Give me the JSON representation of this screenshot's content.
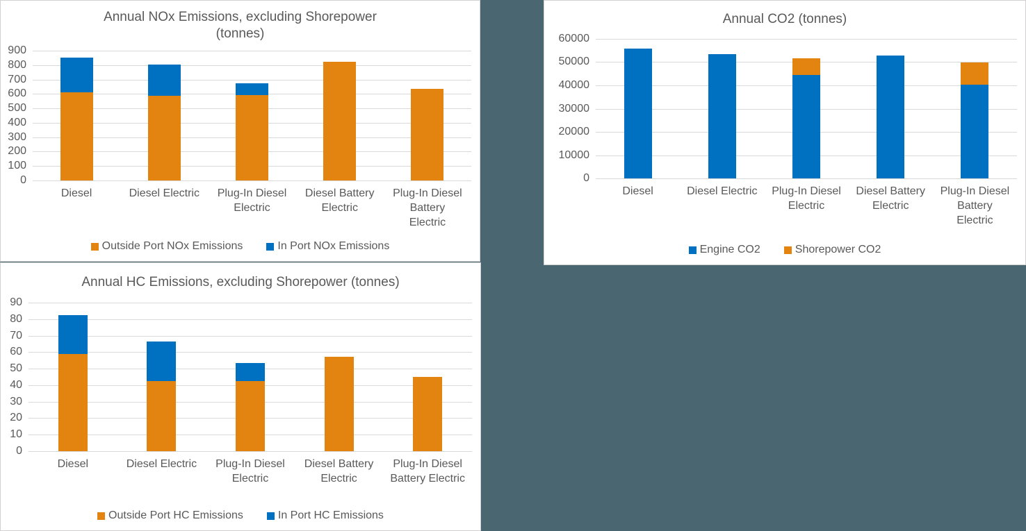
{
  "background_color": "#4A6771",
  "text_color": "#595959",
  "gridline_color": "#D9D9D9",
  "panel_border_color": "#D2D0D0",
  "series_colors": {
    "orange": "#E48410",
    "blue": "#0070C0"
  },
  "chart_data": [
    {
      "id": "nox",
      "type": "bar",
      "stacked": true,
      "title": "Annual NOx Emissions, excluding Shorepower (tonnes)",
      "title_lines": [
        "Annual NOx Emissions, excluding Shorepower",
        "(tonnes)"
      ],
      "categories": [
        [
          "Diesel"
        ],
        [
          "Diesel Electric"
        ],
        [
          "Plug-In Diesel",
          "Electric"
        ],
        [
          "Diesel Battery",
          "Electric"
        ],
        [
          "Plug-In Diesel",
          "Battery",
          "Electric"
        ]
      ],
      "series": [
        {
          "name": "Outside Port NOx Emissions",
          "color": "#E48410",
          "values": [
            610,
            585,
            590,
            825,
            635
          ]
        },
        {
          "name": "In Port NOx Emissions",
          "color": "#0070C0",
          "values": [
            240,
            220,
            85,
            0,
            0
          ]
        }
      ],
      "ylim": [
        0,
        900
      ],
      "yticks": [
        0,
        100,
        200,
        300,
        400,
        500,
        600,
        700,
        800,
        900
      ],
      "grid": "horizontal",
      "legend_position": "bottom"
    },
    {
      "id": "co2",
      "type": "bar",
      "stacked": true,
      "title": "Annual CO2 (tonnes)",
      "title_lines": [
        "Annual CO2 (tonnes)"
      ],
      "categories": [
        [
          "Diesel"
        ],
        [
          "Diesel Electric"
        ],
        [
          "Plug-In Diesel",
          "Electric"
        ],
        [
          "Diesel Battery",
          "Electric"
        ],
        [
          "Plug-In Diesel",
          "Battery",
          "Electric"
        ]
      ],
      "series": [
        {
          "name": "Engine CO2",
          "color": "#0070C0",
          "values": [
            55900,
            53300,
            44400,
            52800,
            40300
          ]
        },
        {
          "name": "Shorepower CO2",
          "color": "#E48410",
          "values": [
            0,
            0,
            7200,
            0,
            9700
          ]
        }
      ],
      "ylim": [
        0,
        60000
      ],
      "yticks": [
        0,
        10000,
        20000,
        30000,
        40000,
        50000,
        60000
      ],
      "grid": "horizontal",
      "legend_position": "bottom"
    },
    {
      "id": "hc",
      "type": "bar",
      "stacked": true,
      "title": "Annual HC Emissions, excluding Shorepower (tonnes)",
      "title_lines": [
        "Annual HC Emissions, excluding Shorepower (tonnes)"
      ],
      "categories": [
        [
          "Diesel"
        ],
        [
          "Diesel Electric"
        ],
        [
          "Plug-In Diesel",
          "Electric"
        ],
        [
          "Diesel Battery",
          "Electric"
        ],
        [
          "Plug-In Diesel",
          "Battery Electric"
        ]
      ],
      "series": [
        {
          "name": "Outside Port HC Emissions",
          "color": "#E48410",
          "values": [
            59,
            42.5,
            42.5,
            57,
            45
          ]
        },
        {
          "name": "In Port HC Emissions",
          "color": "#0070C0",
          "values": [
            23.5,
            24,
            11,
            0,
            0
          ]
        }
      ],
      "ylim": [
        0,
        90
      ],
      "yticks": [
        0,
        10,
        20,
        30,
        40,
        50,
        60,
        70,
        80,
        90
      ],
      "grid": "horizontal",
      "legend_position": "bottom"
    }
  ]
}
